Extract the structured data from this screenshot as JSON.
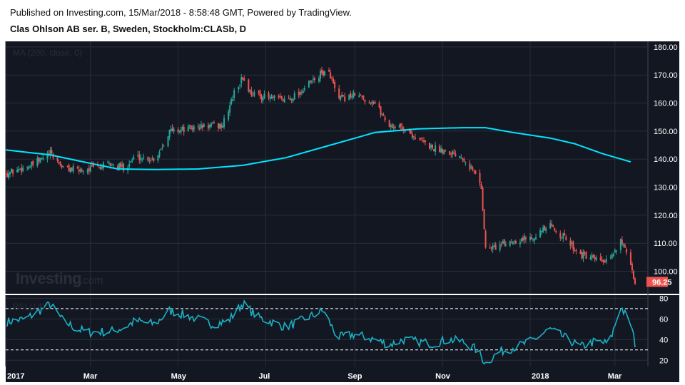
{
  "header": {
    "published": "Published on Investing.com, 15/Mar/2018 - 8:58:48 GMT, Powered by TradingView.",
    "symbol": "Clas Ohlson AB ser. B, Sweden, Stockholm:CLASb, D"
  },
  "watermark": {
    "brand": "Investing",
    "suffix": ".com"
  },
  "colors": {
    "background": "#131722",
    "up": "#26a69a",
    "down": "#ef5350",
    "ma": "#00e5ff",
    "rsi": "#1ab1c4",
    "text": "#ffffff"
  },
  "chart_data": [
    {
      "type": "candlestick",
      "title": "",
      "indicator_label": "MA (200, close, 0)",
      "y_ticks": [
        100,
        110,
        120,
        130,
        140,
        150,
        160,
        170,
        180
      ],
      "y_tick_labels": [
        "100.00",
        "110.00",
        "120.00",
        "130.00",
        "140.00",
        "150.00",
        "160.00",
        "170.00",
        "180.00"
      ],
      "ylim": [
        92,
        182
      ],
      "last_price": 96.25,
      "last_price_label": "96.25",
      "date_range": [
        "2017-01-01",
        "2018-03-16"
      ],
      "price_path": [
        [
          "2017-01-02",
          135
        ],
        [
          "2017-01-20",
          138
        ],
        [
          "2017-02-01",
          142
        ],
        [
          "2017-02-10",
          137
        ],
        [
          "2017-02-20",
          136
        ],
        [
          "2017-03-05",
          137
        ],
        [
          "2017-03-15",
          138
        ],
        [
          "2017-03-25",
          137
        ],
        [
          "2017-04-01",
          141
        ],
        [
          "2017-04-15",
          140
        ],
        [
          "2017-04-25",
          150
        ],
        [
          "2017-05-10",
          151
        ],
        [
          "2017-05-25",
          152
        ],
        [
          "2017-06-01",
          152
        ],
        [
          "2017-06-10",
          165
        ],
        [
          "2017-06-15",
          169
        ],
        [
          "2017-06-20",
          164
        ],
        [
          "2017-07-01",
          162
        ],
        [
          "2017-07-15",
          161
        ],
        [
          "2017-07-25",
          164
        ],
        [
          "2017-08-10",
          171
        ],
        [
          "2017-08-15",
          170
        ],
        [
          "2017-08-20",
          161
        ],
        [
          "2017-09-01",
          163
        ],
        [
          "2017-09-15",
          160
        ],
        [
          "2017-09-25",
          152
        ],
        [
          "2017-10-05",
          151
        ],
        [
          "2017-10-15",
          147
        ],
        [
          "2017-10-25",
          144
        ],
        [
          "2017-11-05",
          143
        ],
        [
          "2017-11-15",
          141
        ],
        [
          "2017-11-25",
          134
        ],
        [
          "2017-11-28",
          130
        ],
        [
          "2017-12-01",
          108
        ],
        [
          "2017-12-10",
          109
        ],
        [
          "2017-12-20",
          111
        ],
        [
          "2018-01-01",
          112
        ],
        [
          "2018-01-15",
          116
        ],
        [
          "2018-01-25",
          112
        ],
        [
          "2018-02-05",
          106
        ],
        [
          "2018-02-15",
          104
        ],
        [
          "2018-02-25",
          103
        ],
        [
          "2018-03-05",
          112
        ],
        [
          "2018-03-12",
          101
        ],
        [
          "2018-03-15",
          96.25
        ]
      ],
      "ma_200": [
        [
          "2017-01-01",
          143.3
        ],
        [
          "2017-02-01",
          141.5
        ],
        [
          "2017-03-01",
          138.5
        ],
        [
          "2017-03-20",
          136.5
        ],
        [
          "2017-04-15",
          136.3
        ],
        [
          "2017-05-15",
          136.5
        ],
        [
          "2017-06-15",
          137.8
        ],
        [
          "2017-07-15",
          140.5
        ],
        [
          "2017-08-15",
          145
        ],
        [
          "2017-09-15",
          149.5
        ],
        [
          "2017-10-15",
          150.8
        ],
        [
          "2017-11-15",
          151.2
        ],
        [
          "2017-12-01",
          151.2
        ],
        [
          "2017-12-20",
          149.5
        ],
        [
          "2018-01-15",
          147.5
        ],
        [
          "2018-02-01",
          145.5
        ],
        [
          "2018-02-20",
          142
        ],
        [
          "2018-03-12",
          139
        ]
      ]
    },
    {
      "type": "line",
      "title": "",
      "indicator_label": "RSI (14)",
      "y_ticks": [
        20,
        40,
        60,
        80
      ],
      "y_tick_labels": [
        "20",
        "40",
        "60",
        "80"
      ],
      "ylim": [
        14,
        83
      ],
      "levels": [
        70,
        30
      ],
      "rsi_path": [
        [
          "2017-01-01",
          57
        ],
        [
          "2017-01-15",
          60
        ],
        [
          "2017-02-01",
          74
        ],
        [
          "2017-02-10",
          58
        ],
        [
          "2017-02-20",
          50
        ],
        [
          "2017-03-01",
          47
        ],
        [
          "2017-03-15",
          48
        ],
        [
          "2017-03-25",
          52
        ],
        [
          "2017-04-01",
          58
        ],
        [
          "2017-04-15",
          55
        ],
        [
          "2017-04-25",
          68
        ],
        [
          "2017-05-10",
          62
        ],
        [
          "2017-05-25",
          55
        ],
        [
          "2017-06-05",
          58
        ],
        [
          "2017-06-15",
          75
        ],
        [
          "2017-06-25",
          62
        ],
        [
          "2017-07-15",
          52
        ],
        [
          "2017-07-25",
          58
        ],
        [
          "2017-08-10",
          68
        ],
        [
          "2017-08-20",
          42
        ],
        [
          "2017-09-01",
          45
        ],
        [
          "2017-09-15",
          40
        ],
        [
          "2017-09-25",
          35
        ],
        [
          "2017-10-05",
          40
        ],
        [
          "2017-10-15",
          38
        ],
        [
          "2017-10-25",
          36
        ],
        [
          "2017-11-05",
          40
        ],
        [
          "2017-11-15",
          38
        ],
        [
          "2017-11-25",
          30
        ],
        [
          "2017-12-01",
          17
        ],
        [
          "2017-12-10",
          28
        ],
        [
          "2017-12-20",
          32
        ],
        [
          "2018-01-01",
          38
        ],
        [
          "2018-01-15",
          50
        ],
        [
          "2018-01-25",
          42
        ],
        [
          "2018-02-05",
          33
        ],
        [
          "2018-02-15",
          38
        ],
        [
          "2018-02-25",
          36
        ],
        [
          "2018-03-05",
          72
        ],
        [
          "2018-03-12",
          55
        ],
        [
          "2018-03-15",
          36
        ]
      ]
    }
  ],
  "x_axis": {
    "ticks": [
      {
        "date": "2017-01-01",
        "label": "2017"
      },
      {
        "date": "2017-03-01",
        "label": "Mar"
      },
      {
        "date": "2017-05-01",
        "label": "May"
      },
      {
        "date": "2017-07-01",
        "label": "Jul"
      },
      {
        "date": "2017-09-01",
        "label": "Sep"
      },
      {
        "date": "2017-11-01",
        "label": "Nov"
      },
      {
        "date": "2018-01-01",
        "label": "2018"
      },
      {
        "date": "2018-03-01",
        "label": "Mar"
      }
    ]
  }
}
